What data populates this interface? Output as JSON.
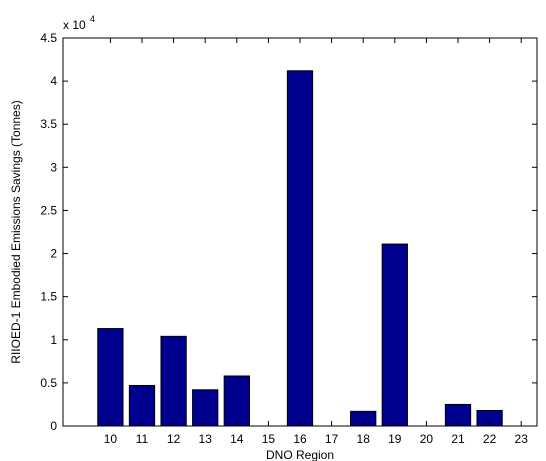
{
  "chart_data": {
    "type": "bar",
    "title": "",
    "xlabel": "DNO Region",
    "ylabel": "RIIOED-1 Embodied Emissions Savings (Tonnes)",
    "exponent_label": "x 10",
    "exponent_power": "4",
    "categories": [
      "10",
      "11",
      "12",
      "13",
      "14",
      "15",
      "16",
      "17",
      "18",
      "19",
      "20",
      "21",
      "22",
      "23"
    ],
    "values": [
      11300,
      4700,
      10400,
      4200,
      5800,
      0,
      41200,
      0,
      1700,
      21100,
      0,
      2500,
      1800,
      0
    ],
    "xlim": [
      8.5,
      23.5
    ],
    "ylim": [
      0,
      45000
    ],
    "y_ticks": [
      0,
      5000,
      10000,
      15000,
      20000,
      25000,
      30000,
      35000,
      40000,
      45000
    ],
    "y_tick_labels": [
      "0",
      "0.5",
      "1",
      "1.5",
      "2",
      "2.5",
      "3",
      "3.5",
      "4",
      "4.5"
    ],
    "bar_color": "#00008f",
    "grid": false,
    "legend": "none"
  }
}
